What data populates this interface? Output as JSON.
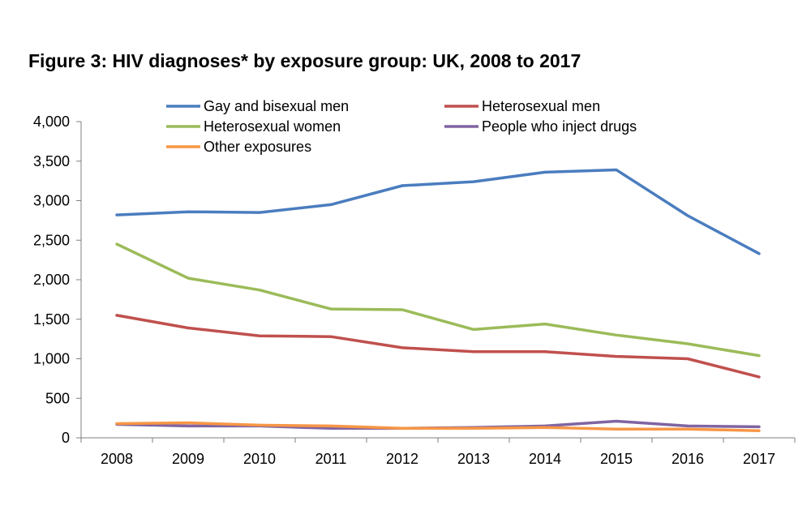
{
  "chart_data": {
    "type": "line",
    "title": "Figure 3: HIV diagnoses* by exposure group: UK, 2008 to 2017",
    "xlabel": "",
    "ylabel": "",
    "categories": [
      "2008",
      "2009",
      "2010",
      "2011",
      "2012",
      "2013",
      "2014",
      "2015",
      "2016",
      "2017"
    ],
    "ylim": [
      0,
      4000
    ],
    "yticks": [
      0,
      500,
      1000,
      1500,
      2000,
      2500,
      3000,
      3500,
      4000
    ],
    "ytick_labels": [
      "0",
      "500",
      "1,000",
      "1,500",
      "2,000",
      "2,500",
      "3,000",
      "3,500",
      "4,000"
    ],
    "grid": false,
    "legend_position": "top",
    "series": [
      {
        "name": "Gay and bisexual men",
        "color": "#4a7dbf",
        "values": [
          2820,
          2860,
          2850,
          2950,
          3190,
          3240,
          3360,
          3390,
          2810,
          2330
        ]
      },
      {
        "name": "Heterosexual men",
        "color": "#c0504d",
        "values": [
          1550,
          1390,
          1290,
          1280,
          1140,
          1090,
          1090,
          1030,
          1000,
          770
        ]
      },
      {
        "name": "Heterosexual women",
        "color": "#9bbb59",
        "values": [
          2450,
          2020,
          1870,
          1630,
          1620,
          1370,
          1440,
          1300,
          1190,
          1040
        ]
      },
      {
        "name": "People who inject drugs",
        "color": "#8064a2",
        "values": [
          170,
          150,
          150,
          120,
          120,
          130,
          150,
          210,
          150,
          140
        ]
      },
      {
        "name": "Other exposures",
        "color": "#f79646",
        "values": [
          180,
          190,
          160,
          150,
          120,
          120,
          130,
          110,
          110,
          90
        ]
      }
    ]
  }
}
